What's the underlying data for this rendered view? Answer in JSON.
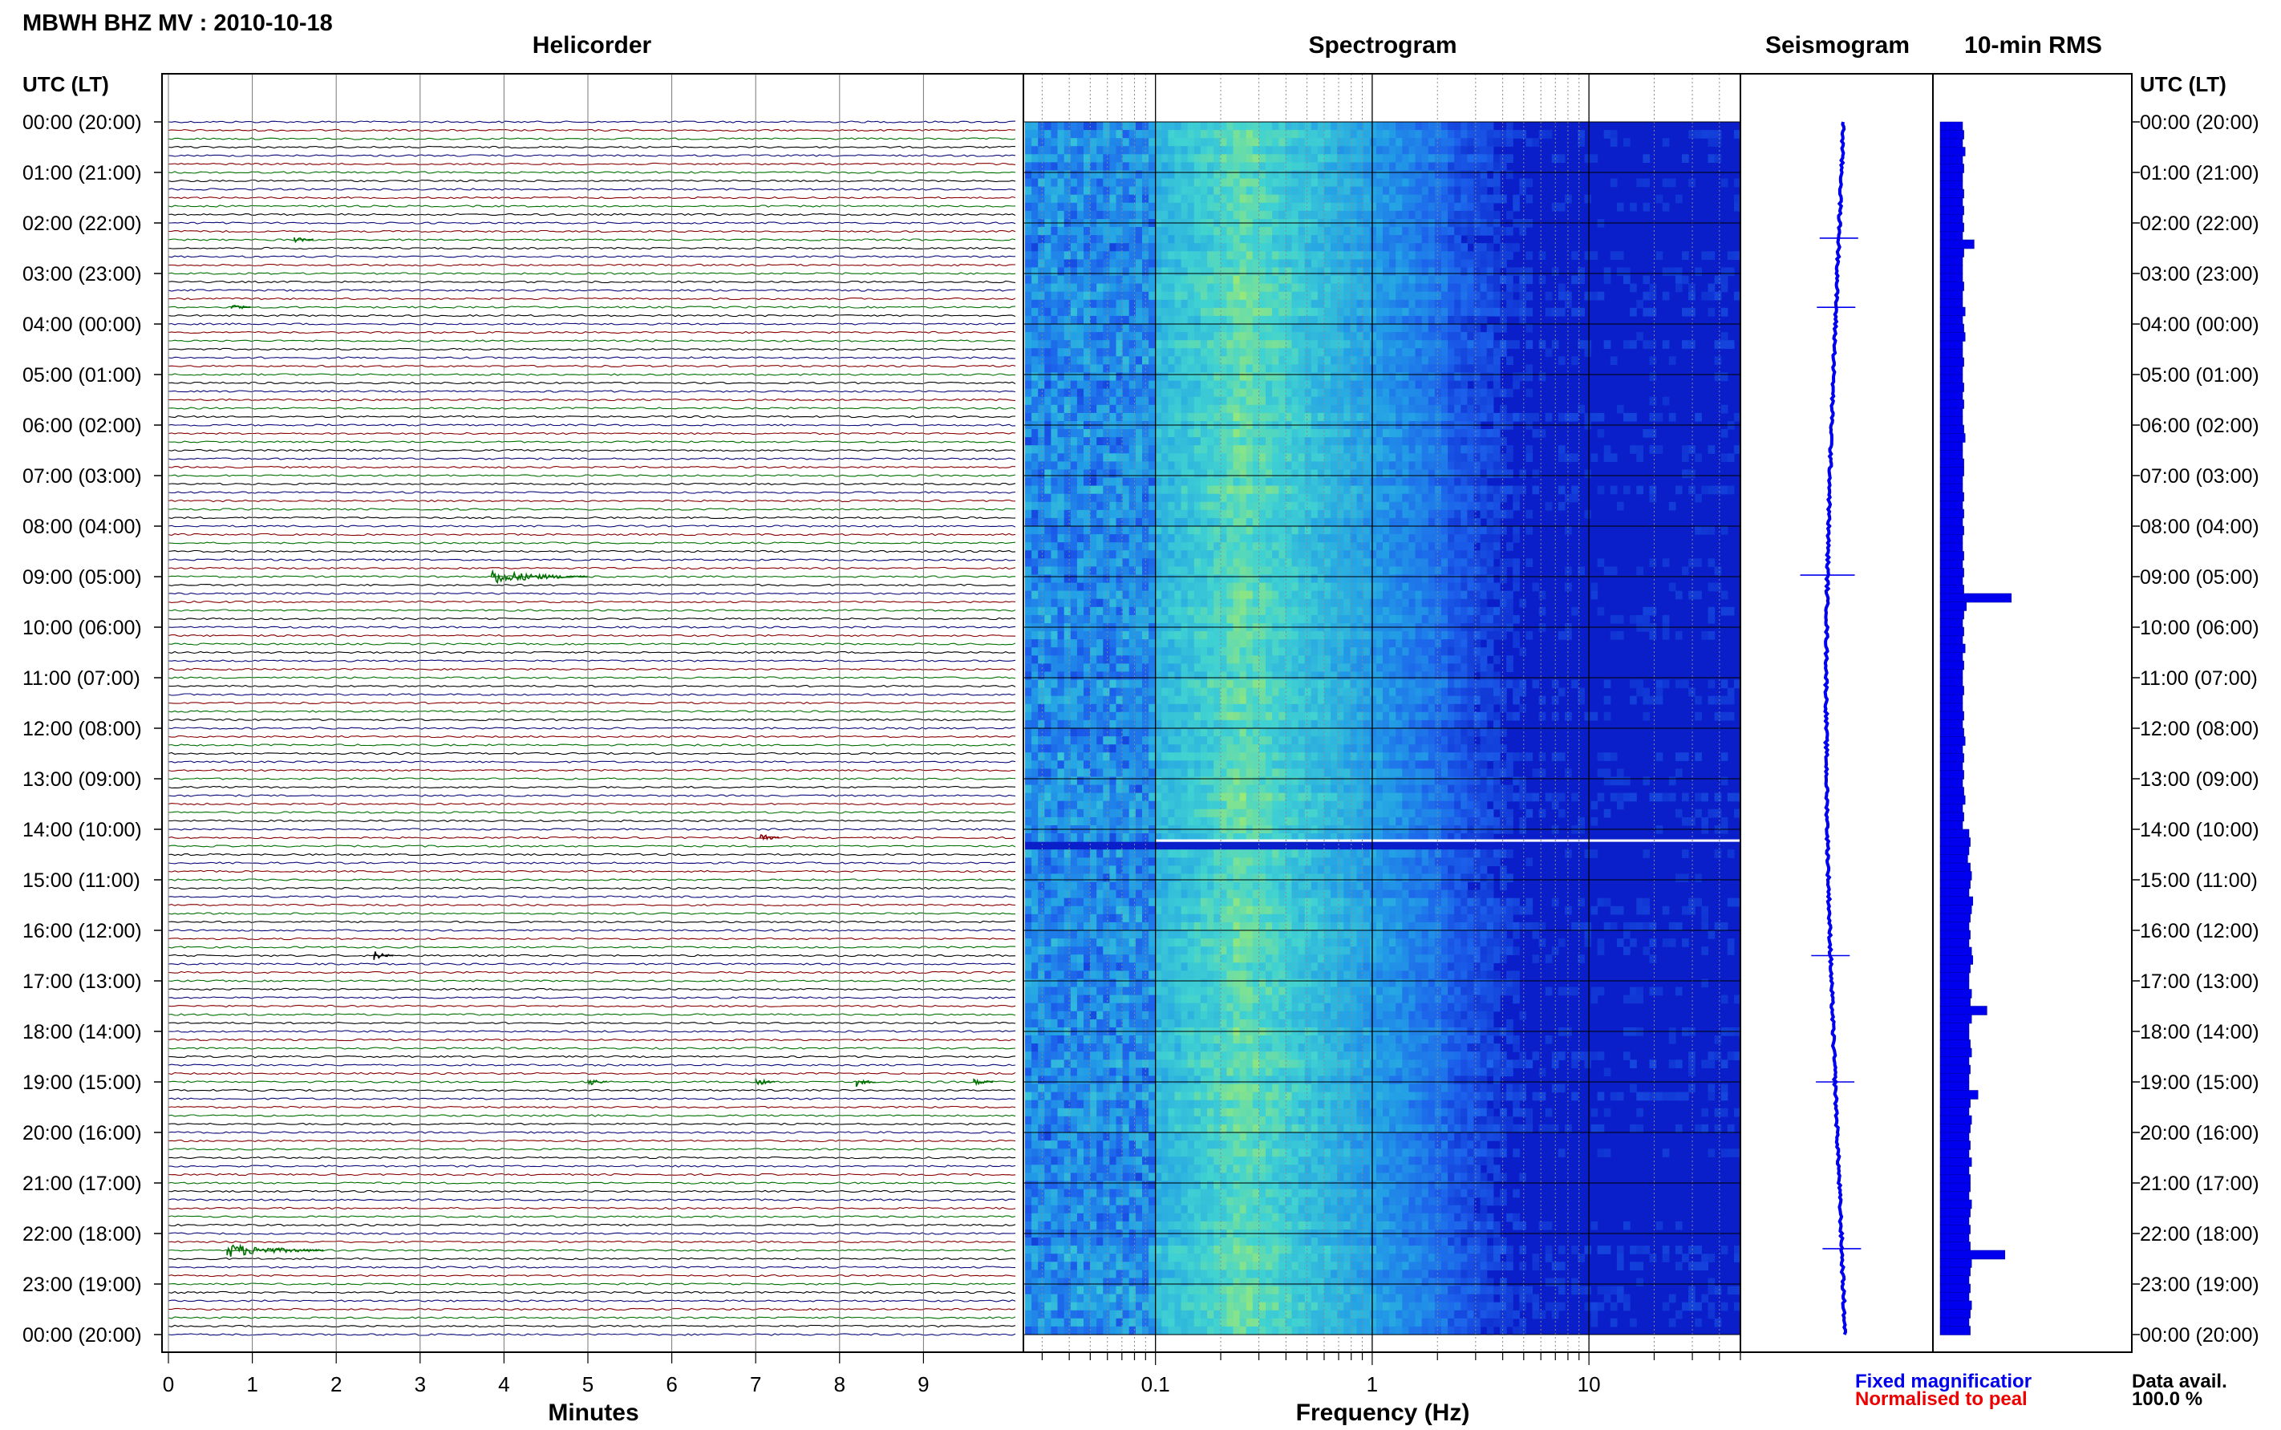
{
  "header": {
    "station_title": "MBWH BHZ MV : 2010-10-18"
  },
  "panels": {
    "helicorder_title": "Helicorder",
    "spectrogram_title": "Spectrogram",
    "seismogram_title": "Seismogram",
    "rms_title": "10-min RMS"
  },
  "axes": {
    "left_time_header": "UTC (LT)",
    "right_time_header": "UTC (LT)",
    "minutes_label": "Minutes",
    "frequency_label": "Frequency (Hz)"
  },
  "footer": {
    "fixed_magnification": "Fixed magnificatior",
    "normalised_to_peak": "Normalised to peal",
    "data_avail_label": "Data avail.",
    "data_avail_value": "100.0 %"
  },
  "colors": {
    "trace_colors": [
      "#0a0a7a",
      "#880000",
      "#007000",
      "#000000"
    ],
    "spectro_dark": "#0a1fc9",
    "spectro_mid": "#23a0e6",
    "spectro_hot": "#a6ec6a",
    "seismogram": "#0000ee",
    "rms_bar": "#0000ee",
    "fixed_text": "#0000ee",
    "normalised_text": "#ee0000"
  },
  "chart_data": {
    "type": "heatmap",
    "time_labels": [
      "00:00 (20:00)",
      "01:00 (21:00)",
      "02:00 (22:00)",
      "03:00 (23:00)",
      "04:00 (00:00)",
      "05:00 (01:00)",
      "06:00 (02:00)",
      "07:00 (03:00)",
      "08:00 (04:00)",
      "09:00 (05:00)",
      "10:00 (06:00)",
      "11:00 (07:00)",
      "12:00 (08:00)",
      "13:00 (09:00)",
      "14:00 (10:00)",
      "15:00 (11:00)",
      "16:00 (12:00)",
      "17:00 (13:00)",
      "18:00 (14:00)",
      "19:00 (15:00)",
      "20:00 (16:00)",
      "21:00 (17:00)",
      "22:00 (18:00)",
      "23:00 (19:00)",
      "00:00 (20:00)"
    ],
    "minute_ticks": [
      "0",
      "1",
      "2",
      "3",
      "4",
      "5",
      "6",
      "7",
      "8",
      "9"
    ],
    "frequency_ticks": [
      "0.1",
      "1",
      "10"
    ],
    "frequency_range_hz": [
      0.025,
      50
    ],
    "frequency_scale": "log",
    "time_range_hours": [
      0,
      24
    ],
    "traces_per_hour": 6,
    "helicorder_events": [
      {
        "hour": 2.3,
        "minute": 1.5
      },
      {
        "hour": 3.67,
        "minute": 0.75
      },
      {
        "hour": 8.97,
        "minute": 3.85
      },
      {
        "hour": 14.18,
        "minute": 7.05
      },
      {
        "hour": 16.52,
        "minute": 2.45
      },
      {
        "hour": 19.0,
        "minute": 5.0
      },
      {
        "hour": 19.0,
        "minute": 7.0
      },
      {
        "hour": 19.0,
        "minute": 8.2
      },
      {
        "hour": 19.0,
        "minute": 9.6
      },
      {
        "hour": 22.3,
        "minute": 0.7
      }
    ],
    "rms_10min": [
      1.0,
      1.1,
      1.0,
      1.2,
      1.0,
      1.1,
      1.0,
      1.0,
      1.1,
      1.0,
      1.1,
      1.0,
      1.1,
      1.0,
      1.9,
      1.1,
      1.0,
      1.0,
      1.0,
      1.1,
      1.0,
      1.0,
      1.2,
      1.0,
      1.1,
      1.2,
      1.0,
      1.0,
      1.1,
      1.0,
      1.0,
      1.1,
      1.0,
      1.1,
      1.0,
      1.0,
      1.1,
      1.2,
      1.0,
      1.0,
      1.1,
      1.1,
      1.0,
      1.0,
      1.1,
      1.0,
      1.1,
      1.0,
      1.1,
      1.0,
      1.0,
      1.1,
      1.0,
      1.1,
      1.0,
      1.1,
      4.8,
      1.3,
      1.1,
      1.0,
      1.1,
      1.0,
      1.2,
      1.0,
      1.1,
      1.0,
      1.0,
      1.1,
      1.0,
      1.0,
      1.1,
      1.0,
      1.1,
      1.2,
      1.0,
      1.1,
      1.0,
      1.1,
      1.0,
      1.1,
      1.2,
      1.0,
      1.1,
      1.0,
      1.5,
      1.6,
      1.5,
      1.4,
      1.6,
      1.7,
      1.6,
      1.5,
      1.8,
      1.7,
      1.6,
      1.5,
      1.6,
      1.5,
      1.7,
      1.8,
      1.6,
      1.5,
      1.5,
      1.7,
      1.6,
      2.9,
      1.7,
      1.5,
      1.5,
      1.6,
      1.7,
      1.5,
      1.6,
      1.5,
      1.5,
      2.2,
      1.6,
      1.5,
      1.7,
      1.6,
      1.5,
      1.6,
      1.5,
      1.7,
      1.5,
      1.6,
      1.6,
      1.5,
      1.7,
      1.6,
      1.5,
      1.6,
      1.5,
      1.6,
      4.3,
      1.7,
      1.6,
      1.5,
      1.6,
      1.5,
      1.7,
      1.6,
      1.5,
      1.6
    ],
    "rms_unit": "relative",
    "seismogram_events_hour": [
      2.3,
      3.67,
      8.97,
      16.5,
      19.0,
      22.3
    ],
    "data_gap_hour": 14.2
  }
}
